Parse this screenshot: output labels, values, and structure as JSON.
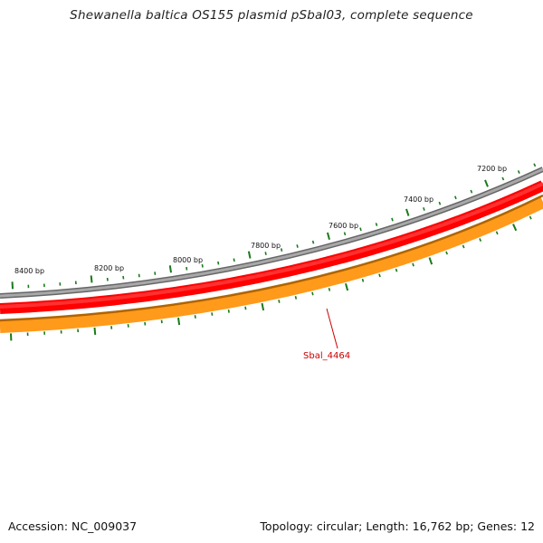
{
  "title": "Shewanella baltica OS155 plasmid pSbal03, complete sequence",
  "footer": {
    "accession": "Accession: NC_009037",
    "summary": "Topology: circular; Length: 16,762 bp; Genes: 12"
  },
  "ruler": {
    "labels": [
      "8400 bp",
      "8200 bp",
      "8000 bp",
      "7800 bp",
      "7600 bp",
      "7400 bp",
      "7200 bp"
    ]
  },
  "genes": [
    {
      "name": "Sbal_4464",
      "color": "#cc0000"
    }
  ],
  "colors": {
    "backbone": "#888888",
    "gene_forward": "#ff0000",
    "gene_reverse": "#ff8c00",
    "tick": "#1a7a1a",
    "label_red": "#cc0000"
  }
}
